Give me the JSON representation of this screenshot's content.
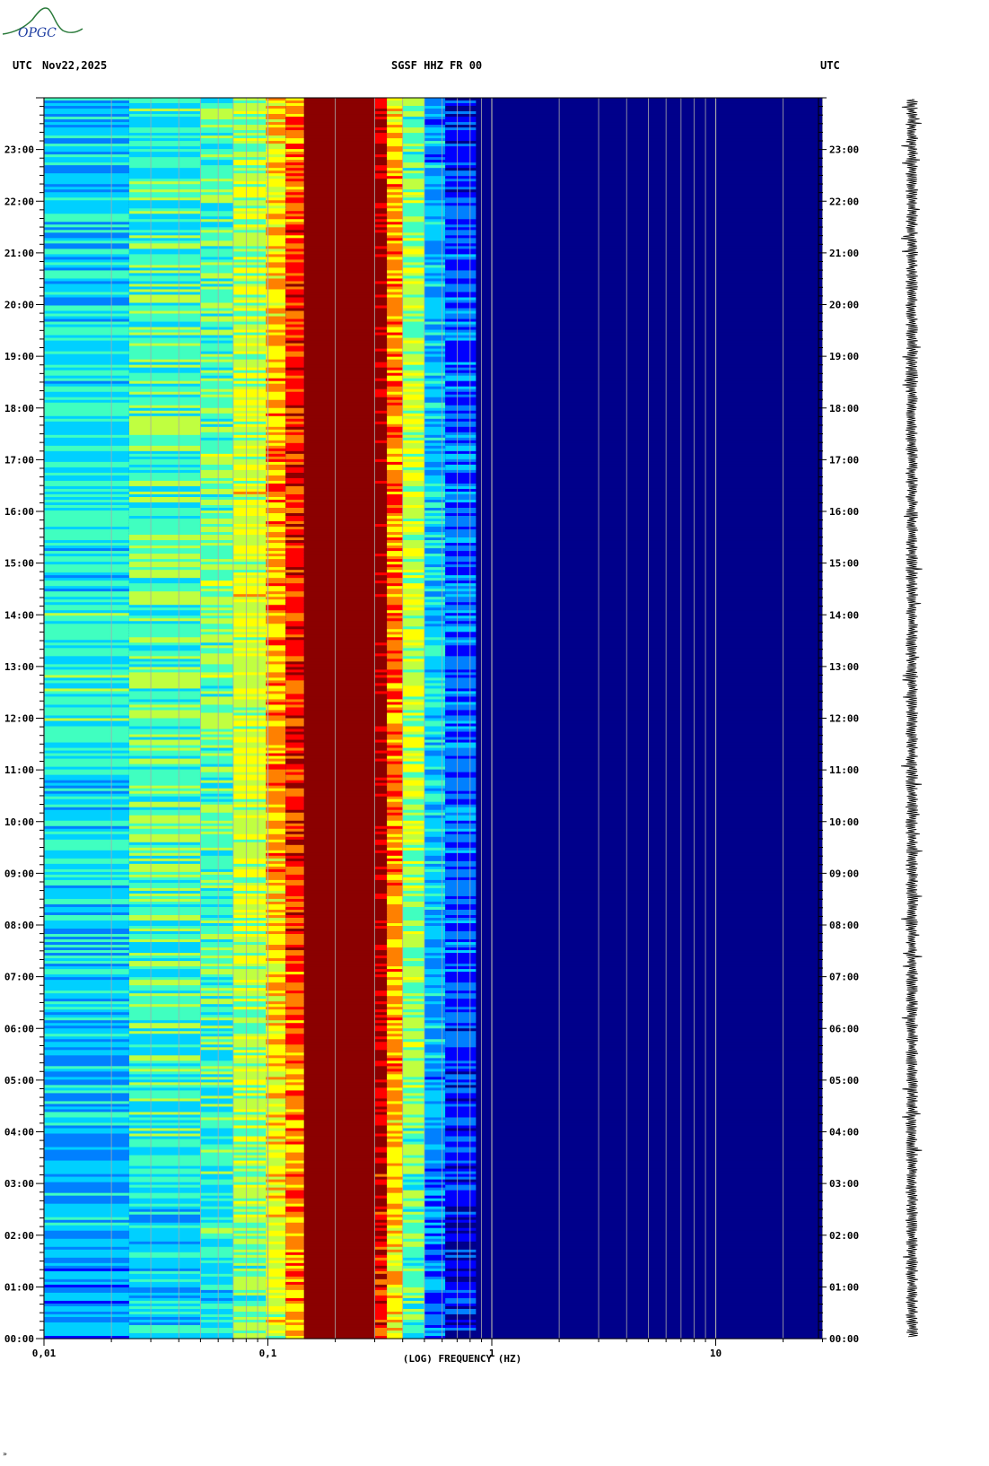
{
  "header": {
    "left_tz": "UTC",
    "date": "Nov22,2025",
    "station": "SGSF HHZ FR 00",
    "right_tz": "UTC"
  },
  "logo": {
    "text": "OPGC",
    "name": "opgc-logo"
  },
  "footnote": "»",
  "chart_data": {
    "type": "heatmap",
    "title": "SGSF HHZ FR 00",
    "xlabel": "(LOG) FREQUENCY (HZ)",
    "ylabel": "UTC",
    "x_scale": "log",
    "xlim": [
      0.01,
      30
    ],
    "x_ticks": [
      {
        "value": 0.01,
        "label": "0,01"
      },
      {
        "value": 0.1,
        "label": "0,1"
      },
      {
        "value": 1,
        "label": "1"
      },
      {
        "value": 10,
        "label": "10"
      }
    ],
    "y_ticks": [
      "00:00",
      "01:00",
      "02:00",
      "03:00",
      "04:00",
      "05:00",
      "06:00",
      "07:00",
      "08:00",
      "09:00",
      "10:00",
      "11:00",
      "12:00",
      "13:00",
      "14:00",
      "15:00",
      "16:00",
      "17:00",
      "18:00",
      "19:00",
      "20:00",
      "21:00",
      "22:00",
      "23:00"
    ],
    "y_range_hours": [
      0,
      24
    ],
    "grid": true,
    "colormap": [
      "#00008b",
      "#0000ff",
      "#0080ff",
      "#00d0ff",
      "#40ffc0",
      "#c0ff40",
      "#ffff00",
      "#ff8000",
      "#ff0000",
      "#8b0000"
    ],
    "spectral_bands": [
      {
        "f_min": 0.01,
        "f_max": 0.024,
        "level": 0.3
      },
      {
        "f_min": 0.024,
        "f_max": 0.05,
        "level": 0.38
      },
      {
        "f_min": 0.05,
        "f_max": 0.07,
        "level": 0.4
      },
      {
        "f_min": 0.07,
        "f_max": 0.098,
        "level": 0.5
      },
      {
        "f_min": 0.098,
        "f_max": 0.12,
        "level": 0.62
      },
      {
        "f_min": 0.12,
        "f_max": 0.145,
        "level": 0.74
      },
      {
        "f_min": 0.145,
        "f_max": 0.3,
        "level": 1.0
      },
      {
        "f_min": 0.3,
        "f_max": 0.34,
        "level": 0.88
      },
      {
        "f_min": 0.34,
        "f_max": 0.4,
        "level": 0.66
      },
      {
        "f_min": 0.4,
        "f_max": 0.5,
        "level": 0.46
      },
      {
        "f_min": 0.5,
        "f_max": 0.62,
        "level": 0.26
      },
      {
        "f_min": 0.62,
        "f_max": 0.85,
        "level": 0.14
      },
      {
        "f_min": 0.85,
        "f_max": 1.6,
        "level": 0.07
      },
      {
        "f_min": 1.6,
        "f_max": 30,
        "level": 0.03
      }
    ]
  },
  "colors": {
    "background": "#ffffff",
    "plot_fill": "#00009c",
    "gridline": "#a8a8a8",
    "text": "#000000",
    "logo": "#2a7a3a"
  }
}
